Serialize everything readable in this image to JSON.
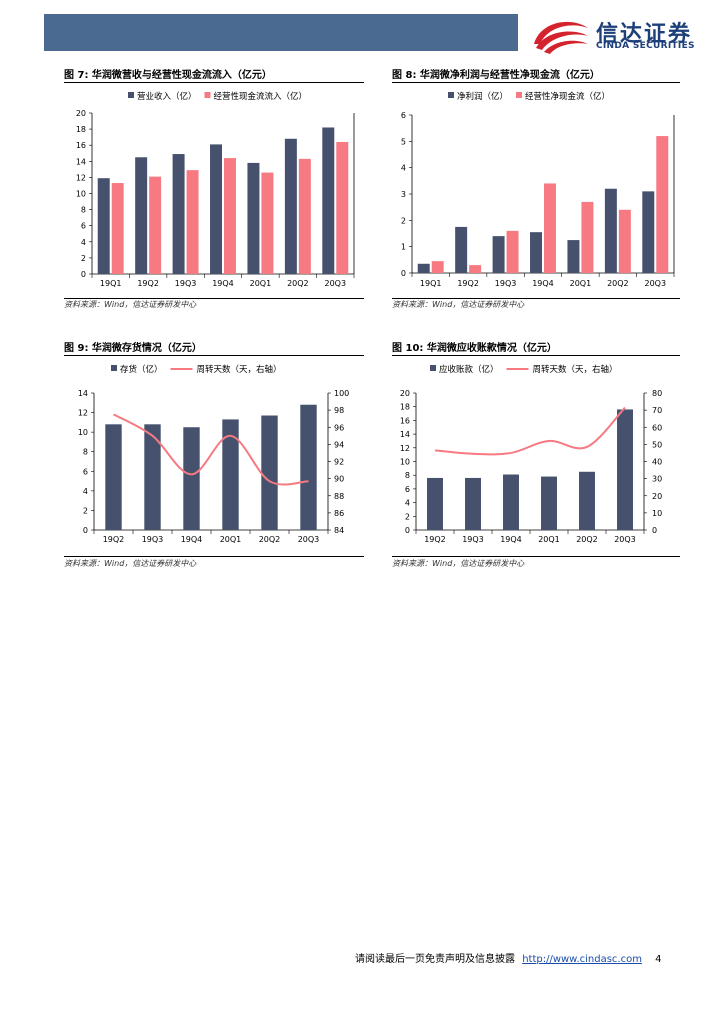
{
  "header": {
    "logo_cn": "信达证券",
    "logo_en": "CINDA SECURITIES",
    "colors": {
      "bar": "#4a6a92",
      "logo_red": "#d5232e",
      "logo_blue": "#1d3f7a"
    }
  },
  "colors": {
    "series_dark": "#45516d",
    "series_pink": "#f77a82"
  },
  "figures": [
    {
      "title": "图 7:  华润微营收与经营性现金流流入（亿元）",
      "source": "资料来源：Wind，信达证券研发中心"
    },
    {
      "title": "图 8:  华润微净利润与经营性净现金流（亿元）",
      "source": "资料来源：Wind，信达证券研发中心"
    },
    {
      "title": "图 9:  华润微存货情况（亿元）",
      "source": "资料来源：Wind，信达证券研发中心"
    },
    {
      "title": "图 10:  华润微应收账款情况（亿元）",
      "source": "资料来源：Wind，信达证券研发中心"
    }
  ],
  "chart_data": [
    {
      "type": "bar",
      "categories": [
        "19Q1",
        "19Q2",
        "19Q3",
        "19Q4",
        "20Q1",
        "20Q2",
        "20Q3"
      ],
      "series": [
        {
          "name": "营业收入（亿）",
          "values": [
            11.9,
            14.5,
            14.9,
            16.1,
            13.8,
            16.8,
            18.2
          ]
        },
        {
          "name": "经营性现金流流入（亿）",
          "values": [
            11.3,
            12.1,
            12.9,
            14.4,
            12.6,
            14.3,
            16.4
          ]
        }
      ],
      "ylim": [
        0,
        20
      ],
      "yticks": [
        0,
        2,
        4,
        6,
        8,
        10,
        12,
        14,
        16,
        18,
        20
      ],
      "legend": "top"
    },
    {
      "type": "bar",
      "categories": [
        "19Q1",
        "19Q2",
        "19Q3",
        "19Q4",
        "20Q1",
        "20Q2",
        "20Q3"
      ],
      "series": [
        {
          "name": "净利润（亿）",
          "values": [
            0.35,
            1.75,
            1.4,
            1.55,
            1.25,
            3.2,
            3.1
          ]
        },
        {
          "name": "经营性净现金流（亿）",
          "values": [
            0.45,
            0.3,
            1.6,
            3.4,
            2.7,
            2.4,
            5.2
          ]
        }
      ],
      "ylim": [
        0,
        6
      ],
      "yticks": [
        0,
        1,
        2,
        3,
        4,
        5,
        6
      ],
      "legend": "top"
    },
    {
      "type": "bar+line",
      "categories": [
        "19Q2",
        "19Q3",
        "19Q4",
        "20Q1",
        "20Q2",
        "20Q3"
      ],
      "series": [
        {
          "name": "存货（亿）",
          "type": "bar",
          "axis": "left",
          "values": [
            10.8,
            10.8,
            10.5,
            11.3,
            11.7,
            12.8
          ]
        },
        {
          "name": "周转天数（天，右轴）",
          "type": "line",
          "axis": "right",
          "values": [
            97.5,
            95.0,
            90.5,
            95.0,
            89.7,
            89.7
          ]
        }
      ],
      "ylim": [
        0,
        14
      ],
      "yticks": [
        0,
        2,
        4,
        6,
        8,
        10,
        12,
        14
      ],
      "y2lim": [
        84,
        100
      ],
      "y2ticks": [
        84,
        86,
        88,
        90,
        92,
        94,
        96,
        98,
        100
      ],
      "legend": "top"
    },
    {
      "type": "bar+line",
      "categories": [
        "19Q2",
        "19Q3",
        "19Q4",
        "20Q1",
        "20Q2",
        "20Q3"
      ],
      "series": [
        {
          "name": "应收账款（亿）",
          "type": "bar",
          "axis": "left",
          "values": [
            7.6,
            7.6,
            8.1,
            7.8,
            8.5,
            17.6
          ]
        },
        {
          "name": "周转天数（天，右轴）",
          "type": "line",
          "axis": "right",
          "values": [
            46.5,
            44.5,
            45.0,
            52.0,
            48.5,
            71.5
          ]
        }
      ],
      "ylim": [
        0,
        20
      ],
      "yticks": [
        0,
        2,
        4,
        6,
        8,
        10,
        12,
        14,
        16,
        18,
        20
      ],
      "y2lim": [
        0,
        80
      ],
      "y2ticks": [
        0,
        10,
        20,
        30,
        40,
        50,
        60,
        70,
        80
      ],
      "legend": "top"
    }
  ],
  "footer": {
    "text": "请阅读最后一页免责声明及信息披露",
    "link": "http://www.cindasc.com",
    "page": "4"
  }
}
